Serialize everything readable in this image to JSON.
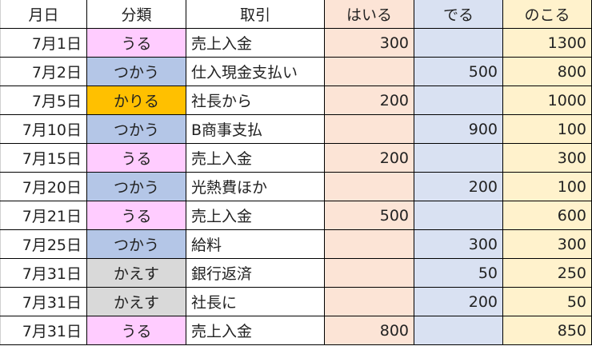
{
  "headers": [
    "月日",
    "分類",
    "取引",
    "はいる",
    "でる",
    "のこる"
  ],
  "category_colors": {
    "うる": "#FFCCFF",
    "つかう": "#B4C6E7",
    "かりる": "#FFC000",
    "かえす": "#D9D9D9"
  },
  "column_colors": {
    "はいる": "#FCE4D6",
    "でる": "#D9E1F2",
    "のこる": "#FFF2CC"
  },
  "rows": [
    {
      "date": "7月1日",
      "category": "うる",
      "desc": "売上入金",
      "in": "300",
      "out": "",
      "balance": "1300"
    },
    {
      "date": "7月2日",
      "category": "つかう",
      "desc": "仕入現金支払い",
      "in": "",
      "out": "500",
      "balance": "800"
    },
    {
      "date": "7月5日",
      "category": "かりる",
      "desc": "社長から",
      "in": "200",
      "out": "",
      "balance": "1000"
    },
    {
      "date": "7月10日",
      "category": "つかう",
      "desc": "B商事支払",
      "in": "",
      "out": "900",
      "balance": "100"
    },
    {
      "date": "7月15日",
      "category": "うる",
      "desc": "売上入金",
      "in": "200",
      "out": "",
      "balance": "300"
    },
    {
      "date": "7月20日",
      "category": "つかう",
      "desc": "光熱費ほか",
      "in": "",
      "out": "200",
      "balance": "100"
    },
    {
      "date": "7月21日",
      "category": "うる",
      "desc": "売上入金",
      "in": "500",
      "out": "",
      "balance": "600"
    },
    {
      "date": "7月25日",
      "category": "つかう",
      "desc": "給料",
      "in": "",
      "out": "300",
      "balance": "300"
    },
    {
      "date": "7月31日",
      "category": "かえす",
      "desc": "銀行返済",
      "in": "",
      "out": "50",
      "balance": "250"
    },
    {
      "date": "7月31日",
      "category": "かえす",
      "desc": "社長に",
      "in": "",
      "out": "200",
      "balance": "50"
    },
    {
      "date": "7月31日",
      "category": "うる",
      "desc": "売上入金",
      "in": "800",
      "out": "",
      "balance": "850"
    }
  ]
}
